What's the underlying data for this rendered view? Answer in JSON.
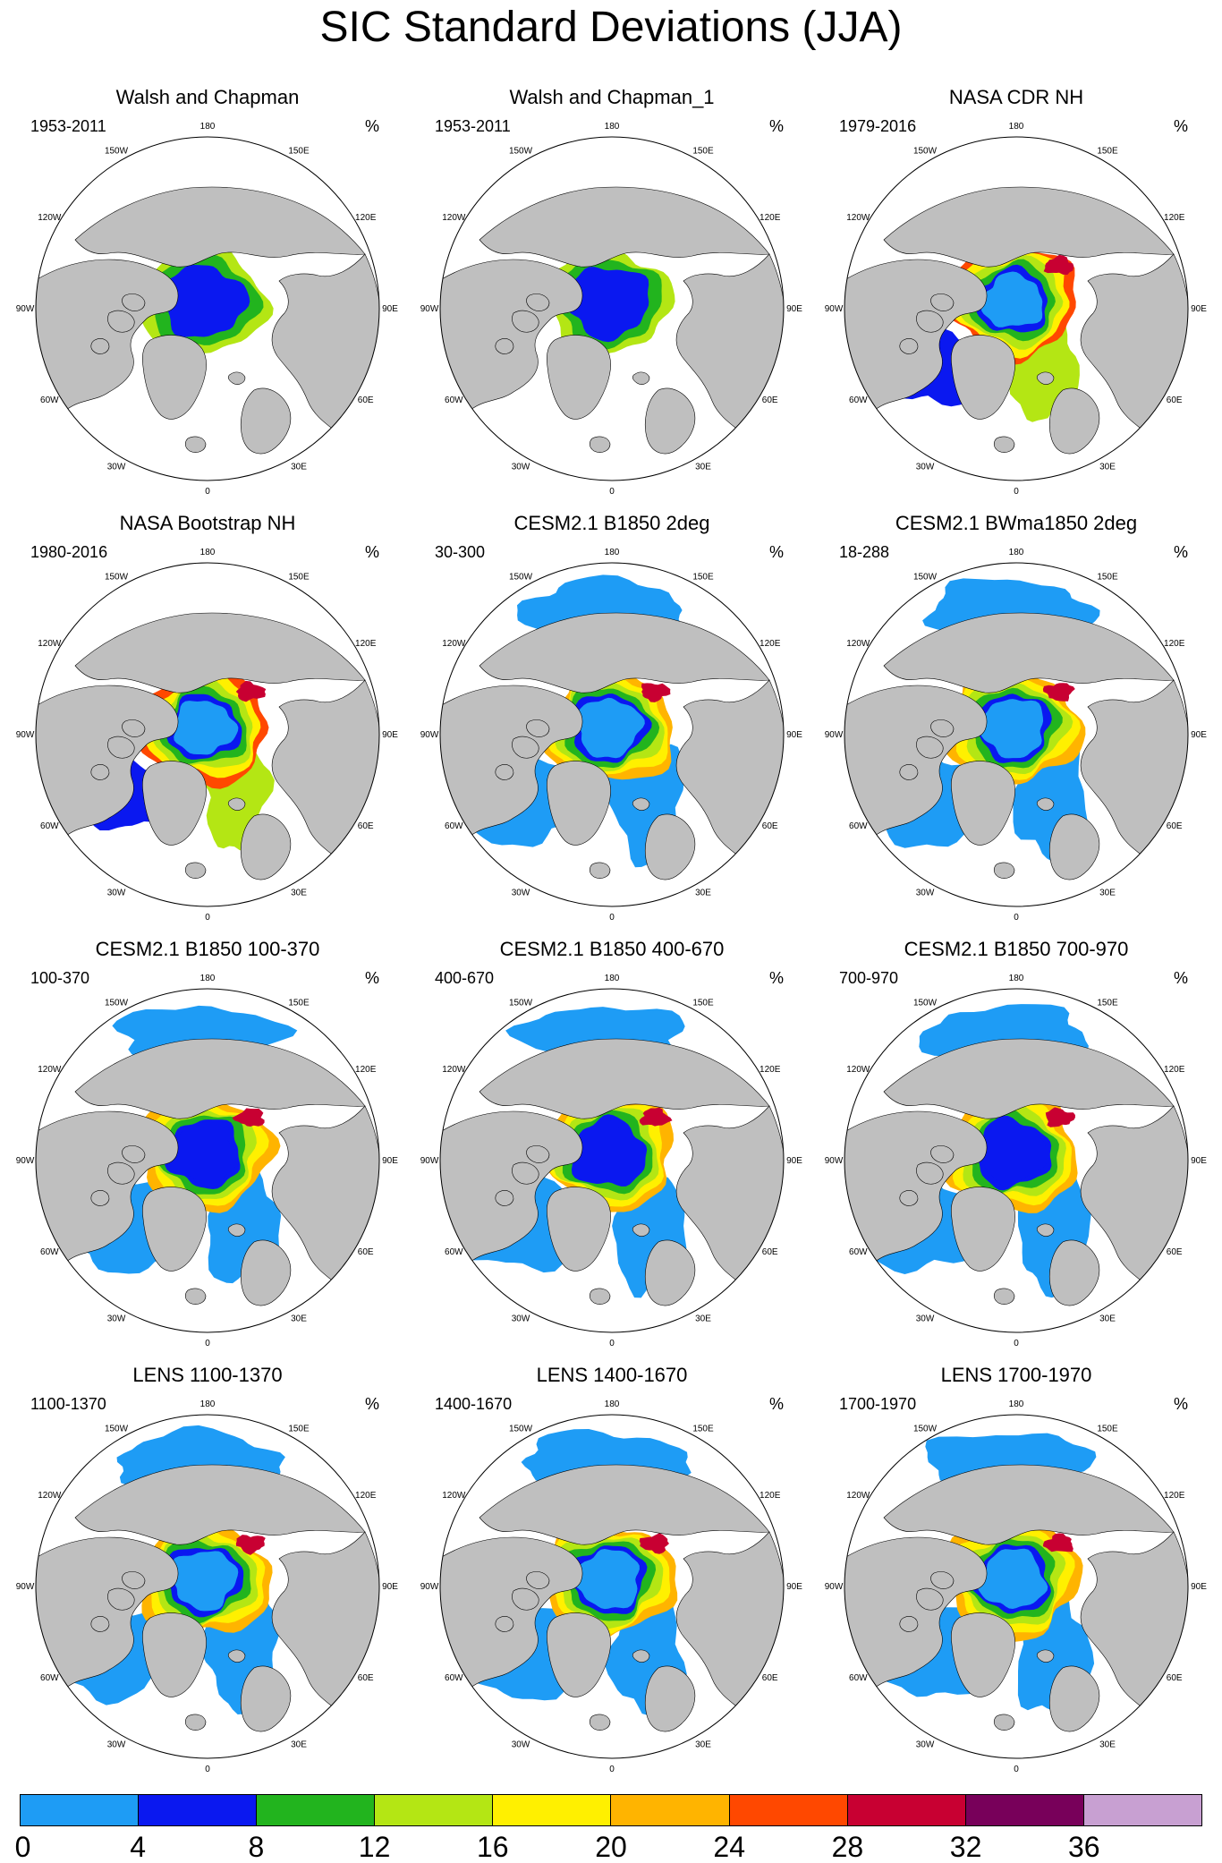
{
  "title": "SIC Standard Deviations (JJA)",
  "units": "%",
  "longitude_labels": {
    "0": "0",
    "30E": "30E",
    "60E": "60E",
    "90E": "90E",
    "120E": "120E",
    "150E": "150E",
    "180": "180",
    "150W": "150W",
    "120W": "120W",
    "90W": "90W",
    "60W": "60W",
    "30W": "30W"
  },
  "colors": {
    "land": "#bfbfbf",
    "ocean": "#ffffff",
    "coast": "#000000"
  },
  "panels": [
    {
      "title": "Walsh and Chapman",
      "period": "1953-2011",
      "units": "%",
      "style": "obs",
      "low": 1
    },
    {
      "title": "Walsh and Chapman_1",
      "period": "1953-2011",
      "units": "%",
      "style": "obs",
      "low": 1
    },
    {
      "title": "NASA CDR NH",
      "period": "1979-2016",
      "units": "%",
      "style": "sat",
      "low": 0
    },
    {
      "title": "NASA Bootstrap NH",
      "period": "1980-2016",
      "units": "%",
      "style": "sat",
      "low": 0
    },
    {
      "title": "CESM2.1 B1850 2deg",
      "period": "30-300",
      "units": "%",
      "style": "model",
      "low": 0
    },
    {
      "title": "CESM2.1 BWma1850 2deg",
      "period": "18-288",
      "units": "%",
      "style": "model",
      "low": 0
    },
    {
      "title": "CESM2.1 B1850 100-370",
      "period": "100-370",
      "units": "%",
      "style": "model",
      "low": 1
    },
    {
      "title": "CESM2.1 B1850 400-670",
      "period": "400-670",
      "units": "%",
      "style": "model",
      "low": 1
    },
    {
      "title": "CESM2.1 B1850 700-970",
      "period": "700-970",
      "units": "%",
      "style": "model",
      "low": 1
    },
    {
      "title": "LENS 1100-1370",
      "period": "1100-1370",
      "units": "%",
      "style": "model",
      "low": 0
    },
    {
      "title": "LENS 1400-1670",
      "period": "1400-1670",
      "units": "%",
      "style": "model",
      "low": 0
    },
    {
      "title": "LENS 1700-1970",
      "period": "1700-1970",
      "units": "%",
      "style": "model",
      "low": 0
    }
  ],
  "colorbar": {
    "colors": [
      "#1e9cf5",
      "#0a18f0",
      "#22b41e",
      "#b4e614",
      "#fff000",
      "#ffb400",
      "#ff4800",
      "#c80032",
      "#78005a",
      "#c8a0d2"
    ],
    "ticks": [
      "0",
      "4",
      "8",
      "12",
      "16",
      "20",
      "24",
      "28",
      "32",
      "36"
    ]
  }
}
